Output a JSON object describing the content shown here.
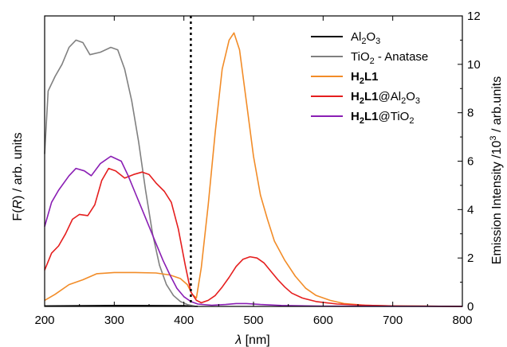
{
  "chart_data": {
    "type": "line",
    "x_axis": {
      "label_italic": "λ",
      "label_rest": " [nm]",
      "range": [
        200,
        800
      ],
      "ticks": [
        "200",
        "300",
        "400",
        "500",
        "600",
        "700",
        "800"
      ]
    },
    "y_left": {
      "label_pre": "F(",
      "label_italic": "R",
      "label_post": ") / arb. units"
    },
    "y_right": {
      "label_pre": "Emission Intensity /10",
      "label_sup": "3",
      "label_post": " / arb.units",
      "range": [
        0,
        12
      ],
      "ticks": [
        "0",
        "2",
        "4",
        "6",
        "8",
        "10",
        "12"
      ]
    },
    "vline_x": 410,
    "legend_position": "top-right",
    "legend": [
      {
        "parts": [
          {
            "t": "Al"
          },
          {
            "t": "2",
            "sub": true
          },
          {
            "t": "O"
          },
          {
            "t": "3",
            "sub": true
          }
        ]
      },
      {
        "parts": [
          {
            "t": "TiO"
          },
          {
            "t": "2",
            "sub": true
          },
          {
            "t": " - Anatase"
          }
        ]
      },
      {
        "parts": [
          {
            "t": "H",
            "b": true
          },
          {
            "t": "2",
            "sub": true,
            "b": true
          },
          {
            "t": "L1",
            "b": true
          }
        ]
      },
      {
        "parts": [
          {
            "t": "H",
            "b": true
          },
          {
            "t": "2",
            "sub": true,
            "b": true
          },
          {
            "t": "L1",
            "b": true
          },
          {
            "t": "@Al"
          },
          {
            "t": "2",
            "sub": true
          },
          {
            "t": "O"
          },
          {
            "t": "3",
            "sub": true
          }
        ]
      },
      {
        "parts": [
          {
            "t": "H",
            "b": true
          },
          {
            "t": "2",
            "sub": true,
            "b": true
          },
          {
            "t": "L1",
            "b": true
          },
          {
            "t": "@TiO"
          },
          {
            "t": "2",
            "sub": true
          }
        ]
      }
    ],
    "series": [
      {
        "color": "#000000",
        "points": [
          [
            200,
            0.02
          ],
          [
            300,
            0.04
          ],
          [
            400,
            0.03
          ],
          [
            410,
            0.01
          ],
          [
            420,
            0
          ]
        ]
      },
      {
        "color": "#808080",
        "points": [
          [
            200,
            6.3
          ],
          [
            205,
            8.9
          ],
          [
            215,
            9.5
          ],
          [
            225,
            10
          ],
          [
            235,
            10.7
          ],
          [
            245,
            11
          ],
          [
            255,
            10.9
          ],
          [
            265,
            10.4
          ],
          [
            280,
            10.5
          ],
          [
            295,
            10.7
          ],
          [
            305,
            10.6
          ],
          [
            315,
            9.8
          ],
          [
            325,
            8.5
          ],
          [
            335,
            6.8
          ],
          [
            345,
            4.8
          ],
          [
            355,
            3.0
          ],
          [
            365,
            1.7
          ],
          [
            375,
            0.9
          ],
          [
            385,
            0.45
          ],
          [
            395,
            0.2
          ],
          [
            405,
            0.08
          ],
          [
            415,
            0.02
          ]
        ]
      },
      {
        "color": "#f28c28",
        "points": [
          [
            200,
            0.25
          ],
          [
            215,
            0.5
          ],
          [
            235,
            0.9
          ],
          [
            255,
            1.1
          ],
          [
            275,
            1.35
          ],
          [
            300,
            1.4
          ],
          [
            330,
            1.4
          ],
          [
            360,
            1.38
          ],
          [
            380,
            1.3
          ],
          [
            395,
            1.15
          ],
          [
            405,
            0.9
          ],
          [
            412,
            0.5
          ],
          [
            418,
            0.35
          ],
          [
            425,
            1.6
          ],
          [
            435,
            4.2
          ],
          [
            445,
            7.2
          ],
          [
            455,
            9.8
          ],
          [
            465,
            11.0
          ],
          [
            472,
            11.3
          ],
          [
            480,
            10.6
          ],
          [
            490,
            8.4
          ],
          [
            500,
            6.2
          ],
          [
            510,
            4.6
          ],
          [
            520,
            3.6
          ],
          [
            530,
            2.7
          ],
          [
            545,
            1.9
          ],
          [
            560,
            1.25
          ],
          [
            575,
            0.75
          ],
          [
            590,
            0.45
          ],
          [
            610,
            0.25
          ],
          [
            630,
            0.12
          ],
          [
            660,
            0.05
          ],
          [
            700,
            0.02
          ],
          [
            750,
            0.01
          ],
          [
            800,
            0
          ]
        ]
      },
      {
        "color": "#e51e1e",
        "points": [
          [
            200,
            1.5
          ],
          [
            210,
            2.2
          ],
          [
            220,
            2.5
          ],
          [
            230,
            3.0
          ],
          [
            240,
            3.6
          ],
          [
            250,
            3.8
          ],
          [
            262,
            3.75
          ],
          [
            272,
            4.2
          ],
          [
            282,
            5.2
          ],
          [
            292,
            5.7
          ],
          [
            302,
            5.6
          ],
          [
            315,
            5.3
          ],
          [
            328,
            5.45
          ],
          [
            340,
            5.55
          ],
          [
            350,
            5.45
          ],
          [
            360,
            5.1
          ],
          [
            372,
            4.75
          ],
          [
            382,
            4.3
          ],
          [
            392,
            3.2
          ],
          [
            402,
            1.7
          ],
          [
            410,
            0.6
          ],
          [
            418,
            0.25
          ],
          [
            425,
            0.15
          ],
          [
            435,
            0.25
          ],
          [
            445,
            0.45
          ],
          [
            455,
            0.8
          ],
          [
            465,
            1.2
          ],
          [
            475,
            1.65
          ],
          [
            485,
            1.95
          ],
          [
            495,
            2.05
          ],
          [
            505,
            2.0
          ],
          [
            515,
            1.8
          ],
          [
            525,
            1.45
          ],
          [
            535,
            1.1
          ],
          [
            545,
            0.8
          ],
          [
            555,
            0.55
          ],
          [
            570,
            0.35
          ],
          [
            590,
            0.2
          ],
          [
            620,
            0.1
          ],
          [
            660,
            0.05
          ],
          [
            700,
            0.02
          ],
          [
            750,
            0.01
          ],
          [
            800,
            0
          ]
        ]
      },
      {
        "color": "#8a1eb4",
        "points": [
          [
            200,
            3.3
          ],
          [
            210,
            4.3
          ],
          [
            220,
            4.8
          ],
          [
            235,
            5.4
          ],
          [
            245,
            5.7
          ],
          [
            257,
            5.6
          ],
          [
            267,
            5.4
          ],
          [
            280,
            5.9
          ],
          [
            295,
            6.2
          ],
          [
            310,
            6.0
          ],
          [
            320,
            5.4
          ],
          [
            330,
            4.7
          ],
          [
            340,
            4.0
          ],
          [
            350,
            3.3
          ],
          [
            360,
            2.6
          ],
          [
            370,
            1.9
          ],
          [
            380,
            1.3
          ],
          [
            390,
            0.75
          ],
          [
            400,
            0.4
          ],
          [
            410,
            0.2
          ],
          [
            420,
            0.1
          ],
          [
            440,
            0.05
          ],
          [
            460,
            0.08
          ],
          [
            475,
            0.12
          ],
          [
            490,
            0.12
          ],
          [
            510,
            0.08
          ],
          [
            540,
            0.04
          ],
          [
            600,
            0.01
          ],
          [
            800,
            0
          ]
        ]
      }
    ]
  }
}
